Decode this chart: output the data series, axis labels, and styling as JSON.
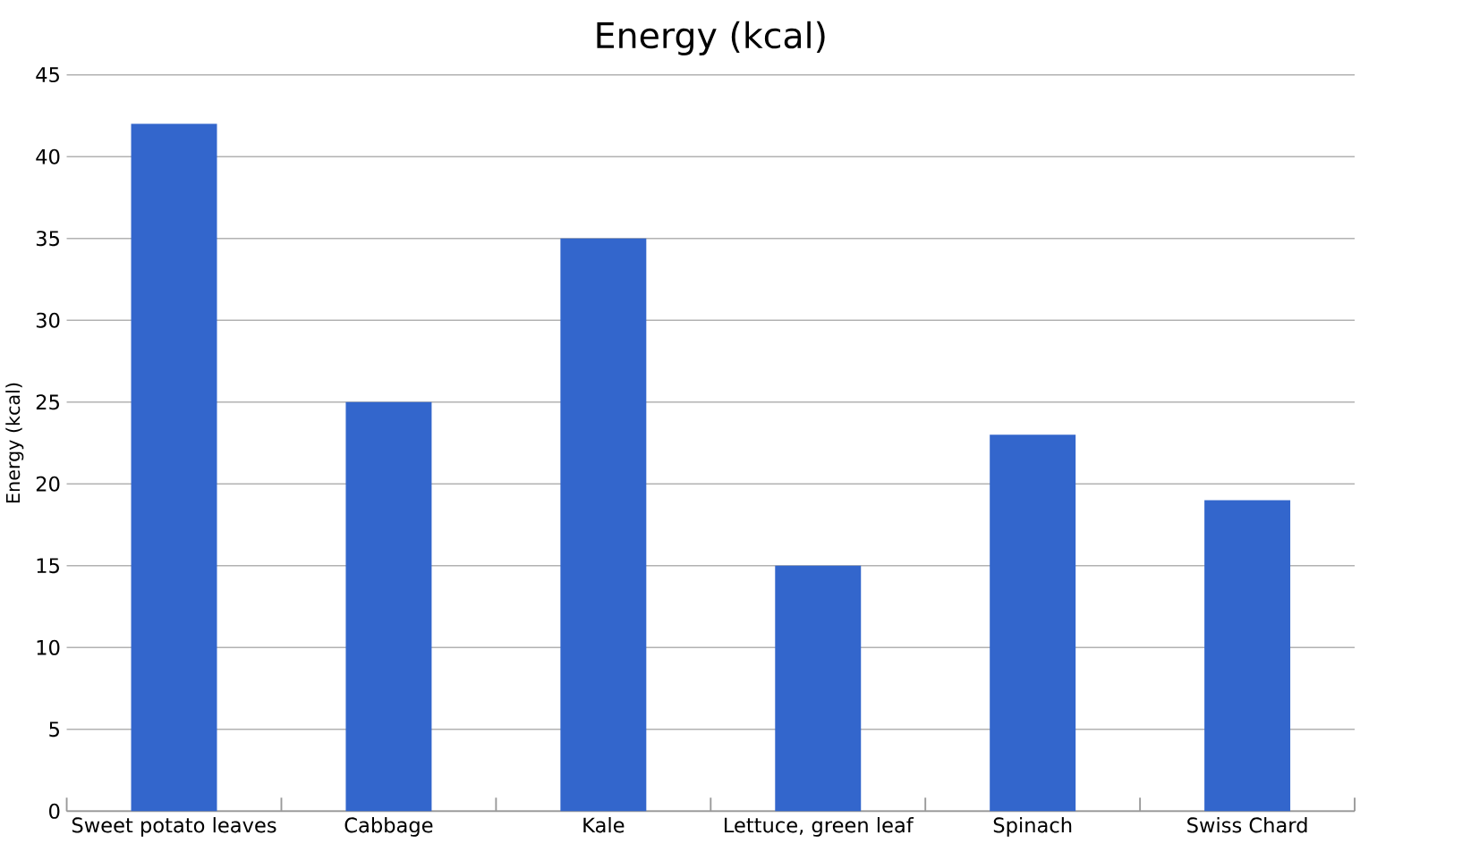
{
  "chart_data": {
    "type": "bar",
    "title": "Energy (kcal)",
    "ylabel": "Energy (kcal)",
    "categories": [
      "Sweet potato leaves",
      "Cabbage",
      "Kale",
      "Lettuce, green leaf",
      "Spinach",
      "Swiss Chard"
    ],
    "values": [
      42,
      25,
      35,
      15,
      23,
      19
    ],
    "color": "#3366cc",
    "ylim": [
      0,
      45
    ],
    "yticks": [
      0,
      5,
      10,
      15,
      20,
      25,
      30,
      35,
      40,
      45
    ],
    "grid": "y"
  }
}
